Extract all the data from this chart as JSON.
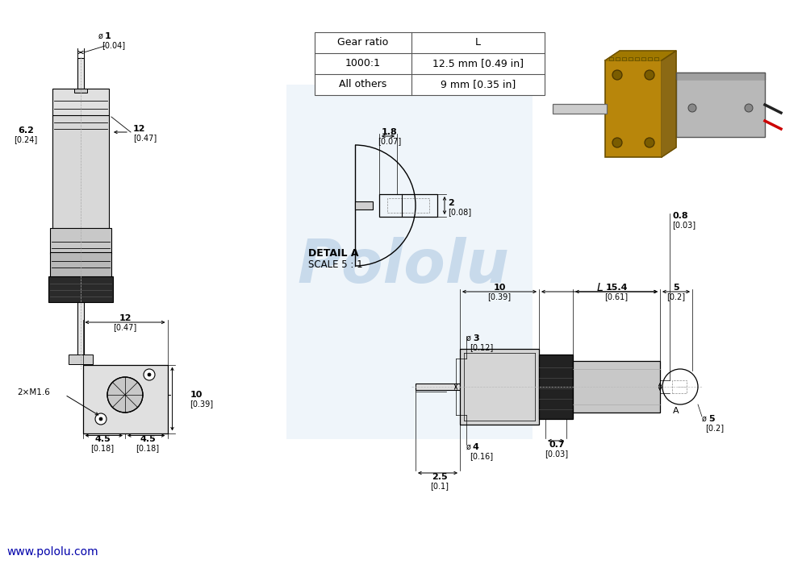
{
  "bg_color": "#ffffff",
  "line_color": "#000000",
  "dim_color": "#000000",
  "blue_color": "#0000cc",
  "light_blue_bg": "#dce9f5",
  "table_headers": [
    "Gear ratio",
    "L"
  ],
  "table_rows": [
    [
      "1000:1",
      "12.5 mm [0.49 in]"
    ],
    [
      "All others",
      "9 mm [0.35 in]"
    ]
  ],
  "website": "www.pololu.com",
  "font_size_dim": 8,
  "font_size_label": 7.5,
  "font_size_website": 9
}
